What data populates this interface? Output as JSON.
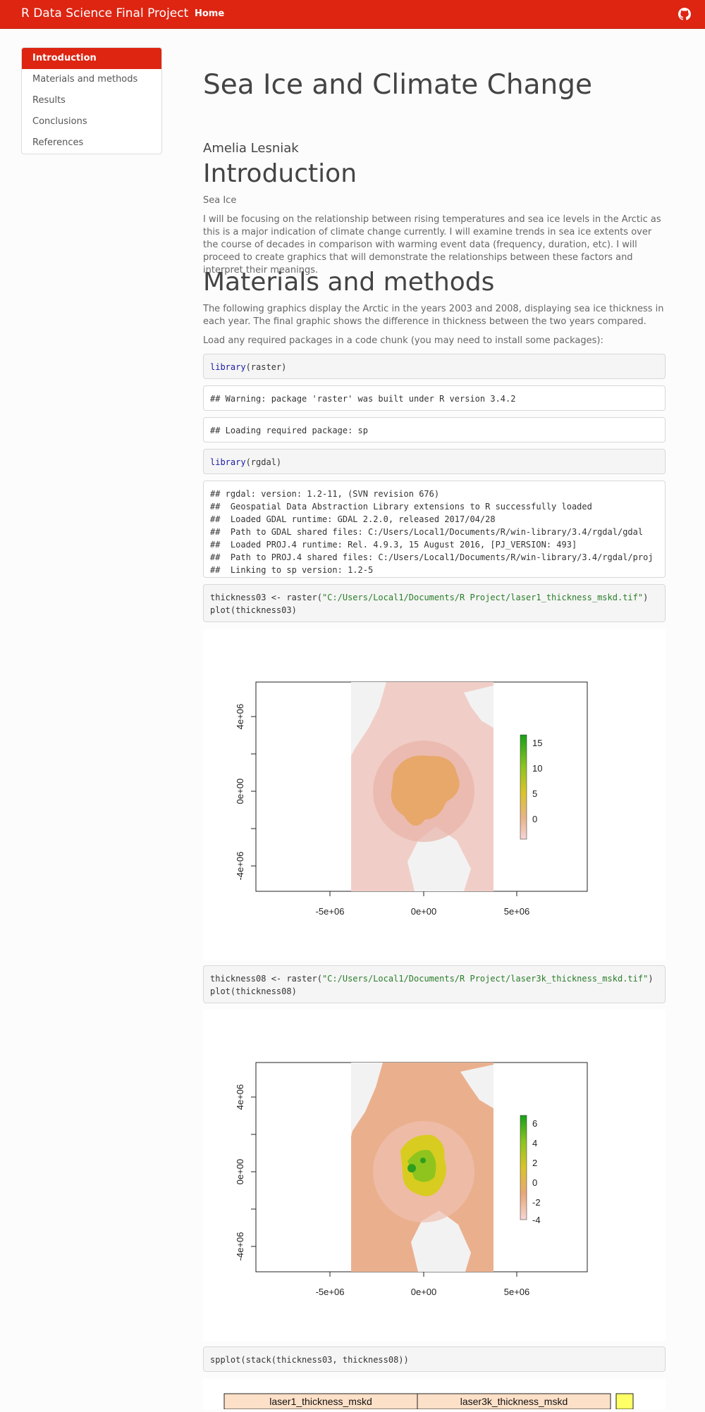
{
  "navbar": {
    "brand": "R Data Science Final Project",
    "home": "Home",
    "icon": "github-icon"
  },
  "toc": {
    "items": [
      {
        "label": "Introduction",
        "active": true
      },
      {
        "label": "Materials and methods",
        "active": false
      },
      {
        "label": "Results",
        "active": false
      },
      {
        "label": "Conclusions",
        "active": false
      },
      {
        "label": "References",
        "active": false
      }
    ]
  },
  "doc": {
    "title": "Sea Ice and Climate Change",
    "author": "Amelia Lesniak",
    "intro_heading": "Introduction",
    "intro_sub": "Sea Ice",
    "intro_para": "I will be focusing on the relationship between rising temperatures and sea ice levels in the Arctic as this is a major indication of climate change currently. I will examine trends in sea ice extents over the course of decades in comparison with warming event data (frequency, duration, etc). I will proceed to create graphics that will demonstrate the relationships between these factors and interpret their meanings.",
    "methods_heading": "Materials and methods",
    "methods_para": "The following graphics display the Arctic in the years 2003 and 2008, displaying sea ice thickness in each year. The final graphic shows the difference in thickness between the two years compared.",
    "load_para": "Load any required packages in a code chunk (you may need to install some packages):"
  },
  "code": {
    "c1_fn": "library",
    "c1_arg": "(raster)",
    "o1": "## Warning: package 'raster' was built under R version 3.4.2",
    "o2": "## Loading required package: sp",
    "c2_fn": "library",
    "c2_arg": "(rgdal)",
    "o3": [
      "## rgdal: version: 1.2-11, (SVN revision 676)",
      "##  Geospatial Data Abstraction Library extensions to R successfully loaded",
      "##  Loaded GDAL runtime: GDAL 2.2.0, released 2017/04/28",
      "##  Path to GDAL shared files: C:/Users/Local1/Documents/R/win-library/3.4/rgdal/gdal",
      "##  Loaded PROJ.4 runtime: Rel. 4.9.3, 15 August 2016, [PJ_VERSION: 493]",
      "##  Path to PROJ.4 shared files: C:/Users/Local1/Documents/R/win-library/3.4/rgdal/proj",
      "##  Linking to sp version: 1.2-5"
    ],
    "c3_pre": "thickness03 <- raster(",
    "c3_str": "\"C:/Users/Local1/Documents/R Project/laser1_thickness_mskd.tif\"",
    "c3_post": ")",
    "c3_line2": "plot(thickness03)",
    "c4_pre": "thickness08 <- raster(",
    "c4_str": "\"C:/Users/Local1/Documents/R Project/laser3k_thickness_mskd.tif\"",
    "c4_post": ")",
    "c4_line2": "plot(thickness08)",
    "c5": "spplot(stack(thickness03, thickness08))"
  },
  "plot1": {
    "yticks": [
      "4e+06",
      "0e+00",
      "-4e+06"
    ],
    "xticks": [
      "-5e+06",
      "0e+00",
      "5e+06"
    ],
    "legend": [
      "15",
      "10",
      "5",
      "0"
    ]
  },
  "plot2": {
    "yticks": [
      "4e+06",
      "0e+00",
      "-4e+06"
    ],
    "xticks": [
      "-5e+06",
      "0e+00",
      "5e+06"
    ],
    "legend": [
      "6",
      "4",
      "2",
      "0",
      "-2",
      "-4"
    ]
  },
  "plot3": {
    "strip1": "laser1_thickness_mskd",
    "strip2": "laser3k_thickness_mskd"
  },
  "colors": {
    "accent": "#dd2512",
    "ice_pink": "#f0c8c0",
    "ice_orange": "#e8a86a",
    "ice_green": "#2e9e1f",
    "ice_yellow": "#d8cc20"
  }
}
